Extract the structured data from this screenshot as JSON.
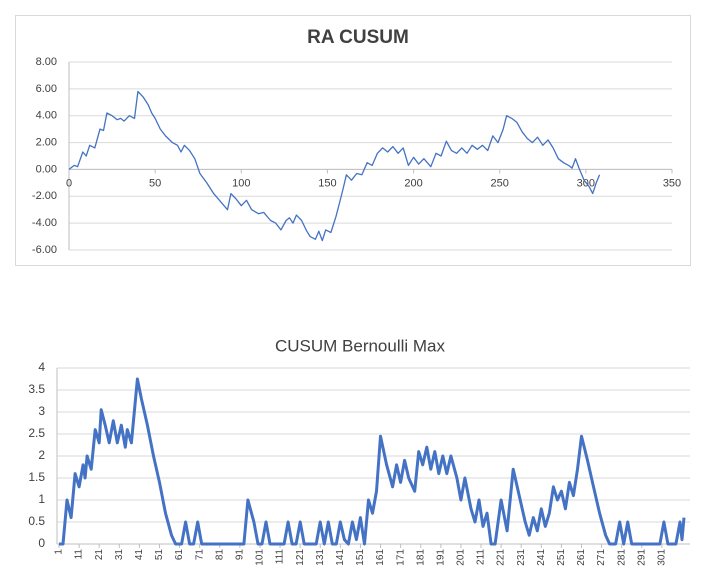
{
  "chart_data": [
    {
      "type": "line",
      "title": "RA CUSUM",
      "title_bold": true,
      "line_width": 1.3,
      "color": "#4472c4",
      "grid": true,
      "xlim": [
        0,
        350
      ],
      "xticks": [
        0,
        50,
        100,
        150,
        200,
        250,
        300,
        350
      ],
      "ylim": [
        -6,
        8
      ],
      "yticks": [
        {
          "value": 8,
          "label": "8.00"
        },
        {
          "value": 6,
          "label": "6.00"
        },
        {
          "value": 4,
          "label": "4.00"
        },
        {
          "value": 2,
          "label": "2.00"
        },
        {
          "value": 0,
          "label": "0.00"
        },
        {
          "value": -2,
          "label": "-2.00"
        },
        {
          "value": -4,
          "label": "-4.00"
        },
        {
          "value": -6,
          "label": "-6.00"
        }
      ],
      "x": [
        0,
        3,
        5,
        8,
        10,
        12,
        15,
        18,
        20,
        22,
        25,
        28,
        30,
        32,
        35,
        38,
        40,
        43,
        46,
        48,
        50,
        53,
        56,
        60,
        63,
        65,
        67,
        70,
        73,
        76,
        80,
        84,
        88,
        92,
        94,
        97,
        100,
        103,
        106,
        110,
        113,
        117,
        120,
        123,
        126,
        128,
        130,
        132,
        135,
        138,
        140,
        143,
        145,
        147,
        149,
        152,
        155,
        157,
        159,
        161,
        164,
        167,
        170,
        173,
        176,
        179,
        182,
        185,
        188,
        191,
        194,
        197,
        200,
        203,
        206,
        210,
        213,
        216,
        219,
        222,
        225,
        228,
        231,
        234,
        237,
        240,
        243,
        246,
        249,
        252,
        254,
        257,
        260,
        263,
        266,
        269,
        272,
        275,
        278,
        281,
        284,
        287,
        290,
        292,
        294,
        296,
        299,
        302,
        304,
        306,
        308
      ],
      "values": [
        0,
        0.3,
        0.2,
        1.3,
        1.0,
        1.8,
        1.6,
        3.0,
        2.9,
        4.2,
        4.0,
        3.7,
        3.8,
        3.6,
        4.0,
        3.8,
        5.8,
        5.4,
        4.8,
        4.2,
        3.8,
        3.0,
        2.5,
        2.0,
        1.8,
        1.3,
        1.8,
        1.4,
        0.8,
        -0.3,
        -1.0,
        -1.8,
        -2.4,
        -3.0,
        -1.8,
        -2.2,
        -2.7,
        -2.3,
        -3.0,
        -3.3,
        -3.2,
        -3.8,
        -4.0,
        -4.5,
        -3.8,
        -3.6,
        -4.0,
        -3.4,
        -3.8,
        -4.6,
        -5.0,
        -5.2,
        -4.6,
        -5.3,
        -4.5,
        -4.7,
        -3.5,
        -2.5,
        -1.5,
        -0.4,
        -0.8,
        -0.3,
        -0.4,
        0.5,
        0.3,
        1.2,
        1.6,
        1.3,
        1.7,
        1.2,
        1.6,
        0.3,
        0.9,
        0.4,
        0.8,
        0.2,
        1.2,
        1.0,
        2.1,
        1.4,
        1.2,
        1.6,
        1.2,
        1.8,
        1.5,
        1.8,
        1.4,
        2.5,
        2.0,
        3.0,
        4.0,
        3.8,
        3.5,
        2.8,
        2.3,
        2.0,
        2.4,
        1.8,
        2.2,
        1.6,
        0.8,
        0.5,
        0.3,
        0.1,
        0.8,
        0.1,
        -0.8,
        -1.3,
        -1.8,
        -1.0,
        -0.4
      ]
    },
    {
      "type": "line",
      "title": "CUSUM Bernoulli Max",
      "title_bold": false,
      "line_width": 3,
      "color": "#4472c4",
      "grid": true,
      "xlim": [
        0,
        315
      ],
      "xticks": [
        1,
        11,
        21,
        31,
        41,
        51,
        61,
        71,
        81,
        91,
        101,
        111,
        121,
        131,
        141,
        151,
        161,
        171,
        181,
        191,
        201,
        211,
        221,
        231,
        241,
        251,
        261,
        271,
        281,
        291,
        301
      ],
      "ylim": [
        0,
        4
      ],
      "yticks": [
        0,
        0.5,
        1,
        1.5,
        2,
        2.5,
        3,
        3.5,
        4
      ],
      "x": [
        1,
        3,
        5,
        7,
        9,
        11,
        13,
        14,
        15,
        17,
        19,
        21,
        22,
        24,
        26,
        28,
        30,
        32,
        34,
        35,
        37,
        40,
        42,
        45,
        48,
        51,
        54,
        57,
        59,
        62,
        64,
        66,
        68,
        70,
        72,
        80,
        90,
        93,
        95,
        98,
        100,
        102,
        104,
        106,
        113,
        115,
        117,
        119,
        121,
        123,
        129,
        131,
        133,
        135,
        137,
        139,
        141,
        143,
        145,
        147,
        149,
        151,
        153,
        155,
        157,
        159,
        161,
        164,
        167,
        169,
        171,
        173,
        175,
        178,
        180,
        182,
        184,
        186,
        188,
        190,
        192,
        194,
        196,
        199,
        201,
        203,
        206,
        208,
        210,
        212,
        214,
        216,
        218,
        221,
        224,
        227,
        230,
        233,
        235,
        237,
        239,
        241,
        243,
        245,
        247,
        249,
        251,
        253,
        255,
        257,
        259,
        261,
        264,
        267,
        270,
        273,
        275,
        278,
        280,
        282,
        284,
        286,
        295,
        300,
        302,
        304,
        306,
        308,
        310,
        311,
        312
      ],
      "values": [
        0,
        0,
        1.0,
        0.6,
        1.6,
        1.3,
        1.8,
        1.5,
        2.0,
        1.7,
        2.6,
        2.3,
        3.05,
        2.7,
        2.3,
        2.8,
        2.3,
        2.7,
        2.2,
        2.6,
        2.3,
        3.75,
        3.3,
        2.7,
        2.0,
        1.4,
        0.7,
        0.2,
        0,
        0,
        0.5,
        0,
        0,
        0.5,
        0,
        0,
        0,
        0,
        1.0,
        0.5,
        0,
        0,
        0.5,
        0,
        0,
        0.5,
        0,
        0,
        0.5,
        0,
        0,
        0.5,
        0,
        0.5,
        0,
        0,
        0.5,
        0.1,
        0,
        0.5,
        0.1,
        0.6,
        0,
        1.0,
        0.7,
        1.2,
        2.45,
        1.8,
        1.3,
        1.8,
        1.4,
        1.9,
        1.5,
        1.2,
        2.1,
        1.8,
        2.2,
        1.7,
        2.1,
        1.6,
        2.0,
        1.6,
        2.0,
        1.5,
        1.0,
        1.5,
        0.8,
        0.5,
        1.0,
        0.4,
        0.7,
        0,
        0,
        1.0,
        0.3,
        1.7,
        1.1,
        0.5,
        0.2,
        0.6,
        0.3,
        0.8,
        0.4,
        0.7,
        1.3,
        1.0,
        1.2,
        0.8,
        1.4,
        1.1,
        1.7,
        2.45,
        1.9,
        1.3,
        0.7,
        0.2,
        0,
        0,
        0.5,
        0,
        0.5,
        0,
        0,
        0,
        0.5,
        0,
        0,
        0,
        0.5,
        0.1,
        0.6
      ]
    }
  ]
}
